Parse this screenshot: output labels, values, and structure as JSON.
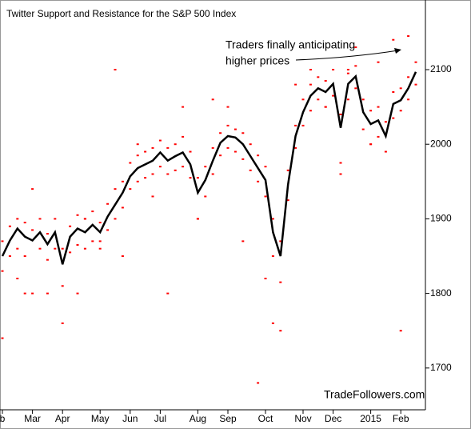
{
  "chart_data": {
    "type": "line",
    "title": "Twitter Support and Resistance for the S&P 500 Index",
    "annotation": [
      "Traders finally anticipating",
      "higher prices"
    ],
    "source": "TradeFollowers.com",
    "categories": [
      "b",
      null,
      null,
      null,
      "Mar",
      null,
      null,
      null,
      "Apr",
      null,
      null,
      null,
      null,
      "May",
      null,
      null,
      null,
      "Jun",
      null,
      null,
      null,
      "Jul",
      null,
      null,
      null,
      null,
      "Aug",
      null,
      null,
      null,
      "Sep",
      null,
      null,
      null,
      null,
      "Oct",
      null,
      null,
      null,
      null,
      "Nov",
      null,
      null,
      null,
      "Dec",
      null,
      null,
      null,
      null,
      "2015",
      null,
      null,
      null,
      "Feb",
      null,
      null
    ],
    "series": [
      {
        "type": "scatter",
        "color": "#ff0000",
        "values": [
          1870,
          1890,
          1900,
          1895,
          1885,
          1900,
          1880,
          1900,
          1860,
          1890,
          1905,
          1900,
          1910,
          1895,
          1920,
          1940,
          1950,
          1975,
          1985,
          1990,
          1995,
          2005,
          1995,
          2000,
          2010,
          1990,
          1955,
          1970,
          1995,
          2015,
          2025,
          2020,
          2015,
          2000,
          1985,
          1970,
          1900,
          1870,
          1965,
          2025,
          2060,
          2080,
          2090,
          2085,
          2100,
          2040,
          2095,
          2105,
          2060,
          2045,
          2050,
          2030,
          2070,
          2075,
          2090,
          2110
        ]
      },
      {
        "type": "scatter",
        "color": "#ff0000",
        "values": [
          1830,
          1850,
          1860,
          1850,
          1800,
          1860,
          1845,
          1860,
          1810,
          1855,
          1865,
          1860,
          1870,
          1860,
          1885,
          1900,
          1915,
          1940,
          1950,
          1955,
          1960,
          1970,
          1960,
          1965,
          1970,
          1955,
          1900,
          1930,
          1960,
          1985,
          1995,
          1990,
          1980,
          1965,
          1950,
          1930,
          1850,
          1815,
          1925,
          1995,
          2025,
          2045,
          2060,
          2050,
          2065,
          1975,
          2060,
          2075,
          2020,
          2000,
          2010,
          1990,
          2035,
          2045,
          2060,
          2080
        ]
      },
      {
        "type": "scatter",
        "color": "#ff0000",
        "values": [
          1740,
          null,
          1820,
          1800,
          1940,
          null,
          1800,
          null,
          1760,
          null,
          1800,
          1900,
          null,
          1870,
          null,
          2100,
          1850,
          null,
          2000,
          null,
          1930,
          null,
          1800,
          null,
          2050,
          null,
          1900,
          null,
          2060,
          null,
          2050,
          null,
          1870,
          null,
          1680,
          1820,
          1760,
          1750,
          null,
          2080,
          null,
          2100,
          null,
          2050,
          null,
          1960,
          2100,
          2130,
          null,
          2000,
          2110,
          null,
          2140,
          1750,
          2145,
          null
        ]
      },
      {
        "type": "line",
        "color": "#000000",
        "values": [
          1850,
          1871,
          1887,
          1876,
          1871,
          1882,
          1866,
          1882,
          1839,
          1876,
          1887,
          1882,
          1892,
          1882,
          1903,
          1919,
          1935,
          1957,
          1968,
          1973,
          1978,
          1989,
          1978,
          1984,
          1989,
          1973,
          1935,
          1952,
          1978,
          2002,
          2011,
          2009,
          2000,
          1984,
          1968,
          1952,
          1882,
          1850,
          1946,
          2011,
          2043,
          2065,
          2075,
          2070,
          2081,
          2022,
          2081,
          2091,
          2043,
          2027,
          2032,
          2011,
          2054,
          2059,
          2075,
          2097
        ]
      }
    ],
    "ylim": [
      1644,
      2188
    ],
    "yticks": [
      1700,
      1800,
      1900,
      2000,
      2100
    ]
  }
}
